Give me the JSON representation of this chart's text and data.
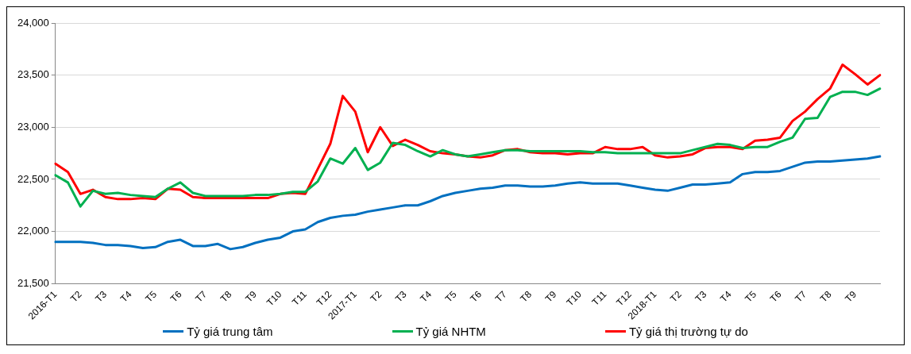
{
  "chart_data": {
    "type": "line",
    "categories": [
      "2016-T1",
      null,
      "T2",
      null,
      "T3",
      null,
      "T4",
      null,
      "T5",
      null,
      "T6",
      null,
      "T7",
      null,
      "T8",
      null,
      "T9",
      null,
      "T10",
      null,
      "T11",
      null,
      "T12",
      null,
      "2017-T1",
      null,
      "T2",
      null,
      "T3",
      null,
      "T4",
      null,
      "T5",
      null,
      "T6",
      null,
      "T7",
      null,
      "T8",
      null,
      "T9",
      null,
      "T10",
      null,
      "T11",
      null,
      "T12",
      null,
      "2018-T1",
      null,
      "T2",
      null,
      "T3",
      null,
      "T4",
      null,
      "T5",
      null,
      "T6",
      null,
      "T7",
      null,
      "T8",
      null,
      "T9",
      null,
      null
    ],
    "ylim": [
      21500,
      24000
    ],
    "yticks": [
      {
        "value": 21500,
        "label": "21,500"
      },
      {
        "value": 22000,
        "label": "22,000"
      },
      {
        "value": 22500,
        "label": "22,500"
      },
      {
        "value": 23000,
        "label": "23,000"
      },
      {
        "value": 23500,
        "label": "23,500"
      },
      {
        "value": 24000,
        "label": "24,000"
      }
    ],
    "grid": "y",
    "legend": "bottom",
    "marker": "none",
    "line_style": "solid",
    "series": [
      {
        "name": "Tỷ giá trung tâm",
        "color": "#0070c0",
        "values": [
          21900,
          21900,
          21900,
          21890,
          21870,
          21870,
          21860,
          21840,
          21850,
          21900,
          21920,
          21860,
          21860,
          21880,
          21830,
          21850,
          21890,
          21920,
          21940,
          22000,
          22020,
          22090,
          22130,
          22150,
          22160,
          22190,
          22210,
          22230,
          22250,
          22250,
          22290,
          22340,
          22370,
          22390,
          22410,
          22420,
          22440,
          22440,
          22430,
          22430,
          22440,
          22460,
          22470,
          22460,
          22460,
          22460,
          22440,
          22420,
          22400,
          22390,
          22420,
          22450,
          22450,
          22460,
          22470,
          22550,
          22570,
          22570,
          22580,
          22620,
          22660,
          22670,
          22670,
          22680,
          22690,
          22700,
          22720
        ]
      },
      {
        "name": "Tỷ giá NHTM",
        "color": "#00b050",
        "values": [
          22540,
          22470,
          22240,
          22390,
          22360,
          22370,
          22350,
          22340,
          22330,
          22410,
          22470,
          22370,
          22340,
          22340,
          22340,
          22340,
          22350,
          22350,
          22360,
          22380,
          22380,
          22480,
          22700,
          22650,
          22800,
          22590,
          22660,
          22850,
          22830,
          22770,
          22720,
          22780,
          22740,
          22720,
          22740,
          22760,
          22780,
          22780,
          22770,
          22770,
          22770,
          22770,
          22770,
          22760,
          22760,
          22750,
          22750,
          22750,
          22750,
          22750,
          22750,
          22780,
          22810,
          22840,
          22830,
          22800,
          22810,
          22810,
          22860,
          22900,
          23080,
          23090,
          23290,
          23340,
          23340,
          23310,
          23370
        ]
      },
      {
        "name": "Tỷ giá thị trường tự do",
        "color": "#ff0000",
        "values": [
          22650,
          22570,
          22360,
          22400,
          22330,
          22310,
          22310,
          22320,
          22310,
          22410,
          22400,
          22330,
          22320,
          22320,
          22320,
          22320,
          22320,
          22320,
          22360,
          22370,
          22360,
          22600,
          22840,
          23300,
          23150,
          22760,
          23000,
          22820,
          22880,
          22830,
          22770,
          22750,
          22740,
          22720,
          22710,
          22730,
          22780,
          22790,
          22760,
          22750,
          22750,
          22740,
          22750,
          22750,
          22810,
          22790,
          22790,
          22810,
          22730,
          22710,
          22720,
          22740,
          22800,
          22810,
          22810,
          22790,
          22870,
          22880,
          22900,
          23060,
          23150,
          23270,
          23370,
          23600,
          23510,
          23410,
          23500
        ]
      }
    ]
  }
}
